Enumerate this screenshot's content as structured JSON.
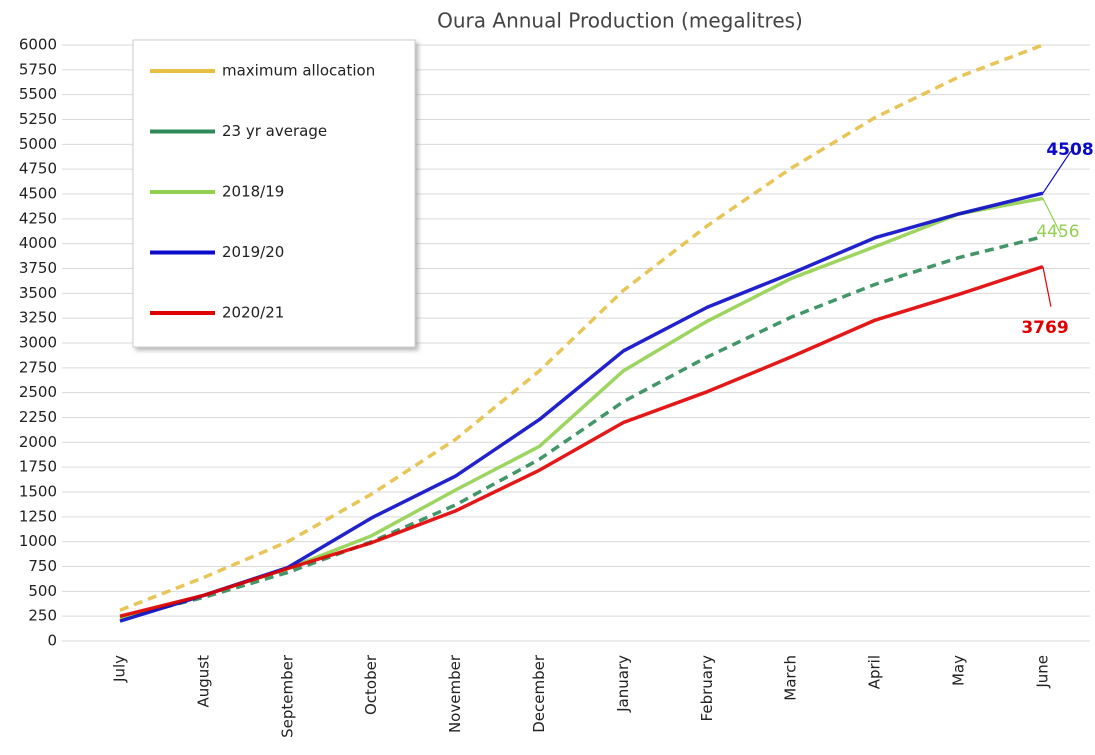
{
  "chart_data": {
    "type": "line",
    "title": "Oura Annual Production (megalitres)",
    "categories": [
      "July",
      "August",
      "September",
      "October",
      "November",
      "December",
      "January",
      "February",
      "March",
      "April",
      "May",
      "June"
    ],
    "ylim": [
      0,
      6000
    ],
    "yticks": [
      0,
      250,
      500,
      750,
      1000,
      1250,
      1500,
      1750,
      2000,
      2250,
      2500,
      2750,
      3000,
      3250,
      3500,
      3750,
      4000,
      4250,
      4500,
      4750,
      5000,
      5250,
      5500,
      5750,
      6000
    ],
    "grid": true,
    "legend": "upper-left",
    "series": [
      {
        "name": "maximum allocation",
        "color": "#e6bf45",
        "dashed": true,
        "values": [
          310,
          640,
          1000,
          1480,
          2030,
          2720,
          3530,
          4180,
          4760,
          5270,
          5680,
          6000
        ]
      },
      {
        "name": "23 yr average",
        "color": "#2e8b57",
        "dashed": true,
        "values": [
          230,
          440,
          690,
          1000,
          1370,
          1830,
          2410,
          2860,
          3260,
          3590,
          3860,
          4070
        ]
      },
      {
        "name": "2018/19",
        "color": "#92d050",
        "values": [
          230,
          460,
          730,
          1060,
          1520,
          1960,
          2720,
          3220,
          3650,
          3970,
          4300,
          4456
        ],
        "label_last": true,
        "label_bold": false
      },
      {
        "name": "2019/20",
        "color": "#0a0ac8",
        "values": [
          200,
          460,
          740,
          1240,
          1660,
          2230,
          2920,
          3360,
          3700,
          4060,
          4300,
          4508
        ],
        "label_last": true,
        "label_bold": true
      },
      {
        "name": "2020/21",
        "color": "#e00000",
        "values": [
          250,
          460,
          730,
          990,
          1310,
          1720,
          2200,
          2510,
          2860,
          3230,
          3490,
          3769
        ],
        "label_last": true,
        "label_bold": true
      }
    ]
  }
}
